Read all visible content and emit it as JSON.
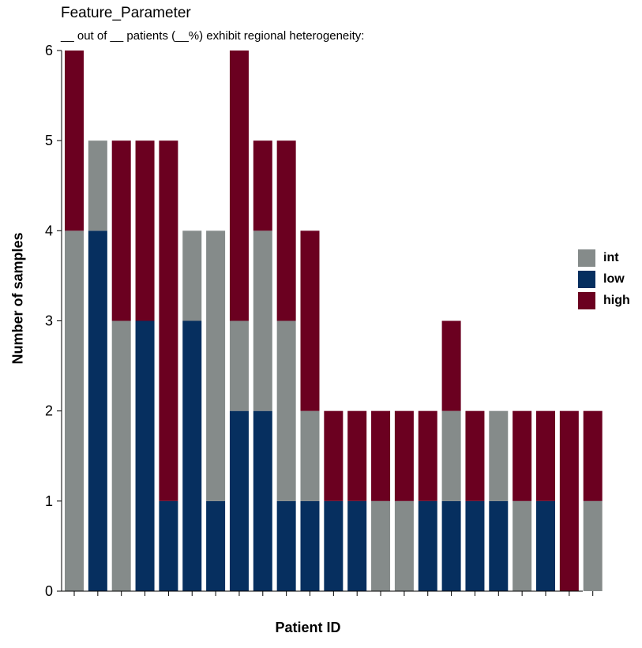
{
  "chart_data": {
    "type": "bar",
    "stacked": true,
    "title": "Feature_Parameter",
    "subtitle": "__ out of __ patients (__%) exhibit regional heterogeneity:",
    "xlabel": "Patient ID",
    "ylabel": "Number of samples",
    "ylim": [
      0,
      6
    ],
    "yticks": [
      "0",
      "1",
      "2",
      "3",
      "4",
      "5",
      "6"
    ],
    "categories": [
      "",
      "",
      "",
      "",
      "",
      "",
      "",
      "",
      "",
      "",
      "",
      "",
      "",
      "",
      "",
      "",
      "",
      "",
      "",
      "",
      "",
      "",
      ""
    ],
    "series": [
      {
        "name": "low",
        "color": "#062f5f",
        "values": [
          0,
          4,
          0,
          3,
          1,
          3,
          1,
          2,
          2,
          1,
          1,
          1,
          1,
          0,
          0,
          1,
          1,
          1,
          1,
          0,
          1,
          0,
          0
        ]
      },
      {
        "name": "int",
        "color": "#858b8a",
        "values": [
          4,
          1,
          3,
          0,
          0,
          1,
          3,
          1,
          2,
          2,
          1,
          0,
          0,
          1,
          1,
          0,
          1,
          0,
          1,
          1,
          0,
          0,
          1
        ]
      },
      {
        "name": "high",
        "color": "#6b0020",
        "values": [
          2,
          0,
          2,
          2,
          4,
          0,
          0,
          3,
          1,
          2,
          2,
          1,
          1,
          1,
          1,
          1,
          1,
          1,
          0,
          1,
          1,
          2,
          1
        ]
      }
    ],
    "legend": {
      "placement": "right",
      "items": [
        {
          "label": "int",
          "color": "#858b8a"
        },
        {
          "label": "low",
          "color": "#062f5f"
        },
        {
          "label": "high",
          "color": "#6b0020"
        }
      ]
    },
    "grid": false
  }
}
